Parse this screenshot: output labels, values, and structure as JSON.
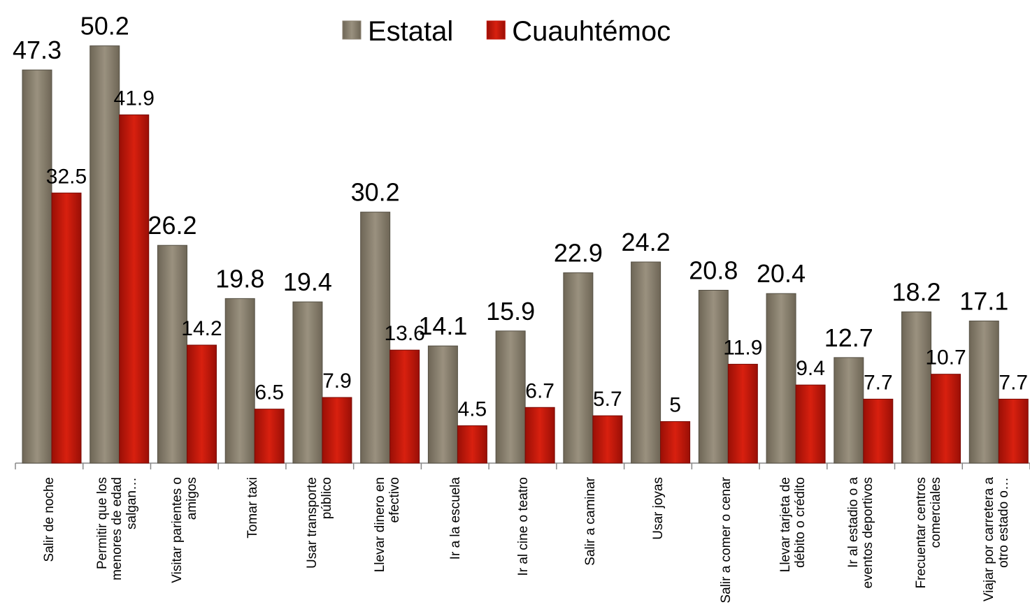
{
  "chart_data": {
    "type": "bar",
    "categories": [
      "Salir de noche",
      "Permitir que los menores de edad salgan…",
      "Visitar parientes o amigos",
      "Tomar taxi",
      "Usar transporte público",
      "Llevar dinero en efectivo",
      "Ir a la escuela",
      "Ir al cine o teatro",
      "Salir a caminar",
      "Usar joyas",
      "Salir a comer o cenar",
      "Llevar tarjeta de débito o crédito",
      "Ir al estadio o a eventos deportivos",
      "Frecuentar centros comerciales",
      "Viajar por carretera a otro estado o…"
    ],
    "series": [
      {
        "name": "Estatal",
        "color": "#8b8271",
        "values": [
          47.3,
          50.2,
          26.2,
          19.8,
          19.4,
          30.2,
          14.1,
          15.9,
          22.9,
          24.2,
          20.8,
          20.4,
          12.7,
          18.2,
          17.1
        ]
      },
      {
        "name": "Cuauhtémoc",
        "color": "#c4170c",
        "values": [
          32.5,
          41.9,
          14.2,
          6.5,
          7.9,
          13.6,
          4.5,
          6.7,
          5.7,
          5,
          11.9,
          9.4,
          7.7,
          10.7,
          7.7
        ]
      }
    ],
    "legend": "top"
  }
}
